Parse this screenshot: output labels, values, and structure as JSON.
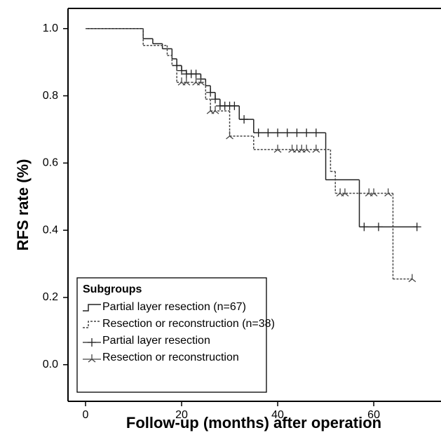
{
  "chart_data": {
    "type": "km",
    "x_label": "Follow-up (months) after operation",
    "y_label": "RFS rate (%)",
    "xlim": [
      -3.65,
      74
    ],
    "ylim": [
      -0.109,
      1.06
    ],
    "xticks": [
      0,
      20,
      40,
      60
    ],
    "yticks": [
      {
        "value": 0,
        "label": "0.0"
      },
      0.2,
      0.4,
      0.6,
      0.8,
      {
        "value": 1,
        "label": "1.0"
      }
    ],
    "legend_title": "Subgroups",
    "series": [
      {
        "name": "Partial layer resection (n=67)",
        "kind": "step",
        "dashed": false,
        "color": "#222222",
        "x": [
          0,
          12,
          14,
          16,
          18,
          19,
          20,
          21,
          24,
          25,
          26,
          27,
          28,
          32,
          35,
          50,
          57,
          69
        ],
        "values": [
          1.0,
          0.97,
          0.955,
          0.94,
          0.91,
          0.89,
          0.875,
          0.865,
          0.85,
          0.83,
          0.81,
          0.79,
          0.77,
          0.73,
          0.69,
          0.55,
          0.41,
          0.41
        ]
      },
      {
        "name": "Resection or reconstruction (n=38)",
        "kind": "step",
        "dashed": true,
        "color": "#444444",
        "x": [
          0,
          12,
          17,
          18,
          19,
          22,
          25,
          26,
          30,
          35,
          51,
          52,
          64,
          68
        ],
        "values": [
          1.0,
          0.95,
          0.92,
          0.89,
          0.84,
          0.84,
          0.79,
          0.755,
          0.68,
          0.64,
          0.575,
          0.51,
          0.255,
          0.255
        ]
      },
      {
        "name": "Partial layer resection",
        "kind": "censor",
        "marker": "plus",
        "color": "#222222",
        "x": [
          19,
          20,
          21,
          22,
          23,
          24,
          26,
          27,
          28,
          29,
          30,
          31,
          33,
          36,
          38,
          40,
          42,
          44,
          46,
          48,
          58,
          61,
          69
        ],
        "values": [
          0.89,
          0.875,
          0.865,
          0.865,
          0.865,
          0.85,
          0.81,
          0.79,
          0.77,
          0.77,
          0.77,
          0.77,
          0.73,
          0.69,
          0.69,
          0.69,
          0.69,
          0.69,
          0.69,
          0.69,
          0.41,
          0.41,
          0.41
        ]
      },
      {
        "name": "Resection or reconstruction",
        "kind": "censor",
        "marker": "tripod",
        "color": "#444444",
        "x": [
          20,
          21,
          23,
          24,
          26,
          27,
          30,
          40,
          43,
          44,
          45,
          46,
          48,
          53,
          54,
          59,
          60,
          63,
          68
        ],
        "values": [
          0.84,
          0.84,
          0.84,
          0.84,
          0.755,
          0.755,
          0.68,
          0.64,
          0.64,
          0.64,
          0.64,
          0.64,
          0.64,
          0.51,
          0.51,
          0.51,
          0.51,
          0.51,
          0.255
        ]
      }
    ]
  }
}
